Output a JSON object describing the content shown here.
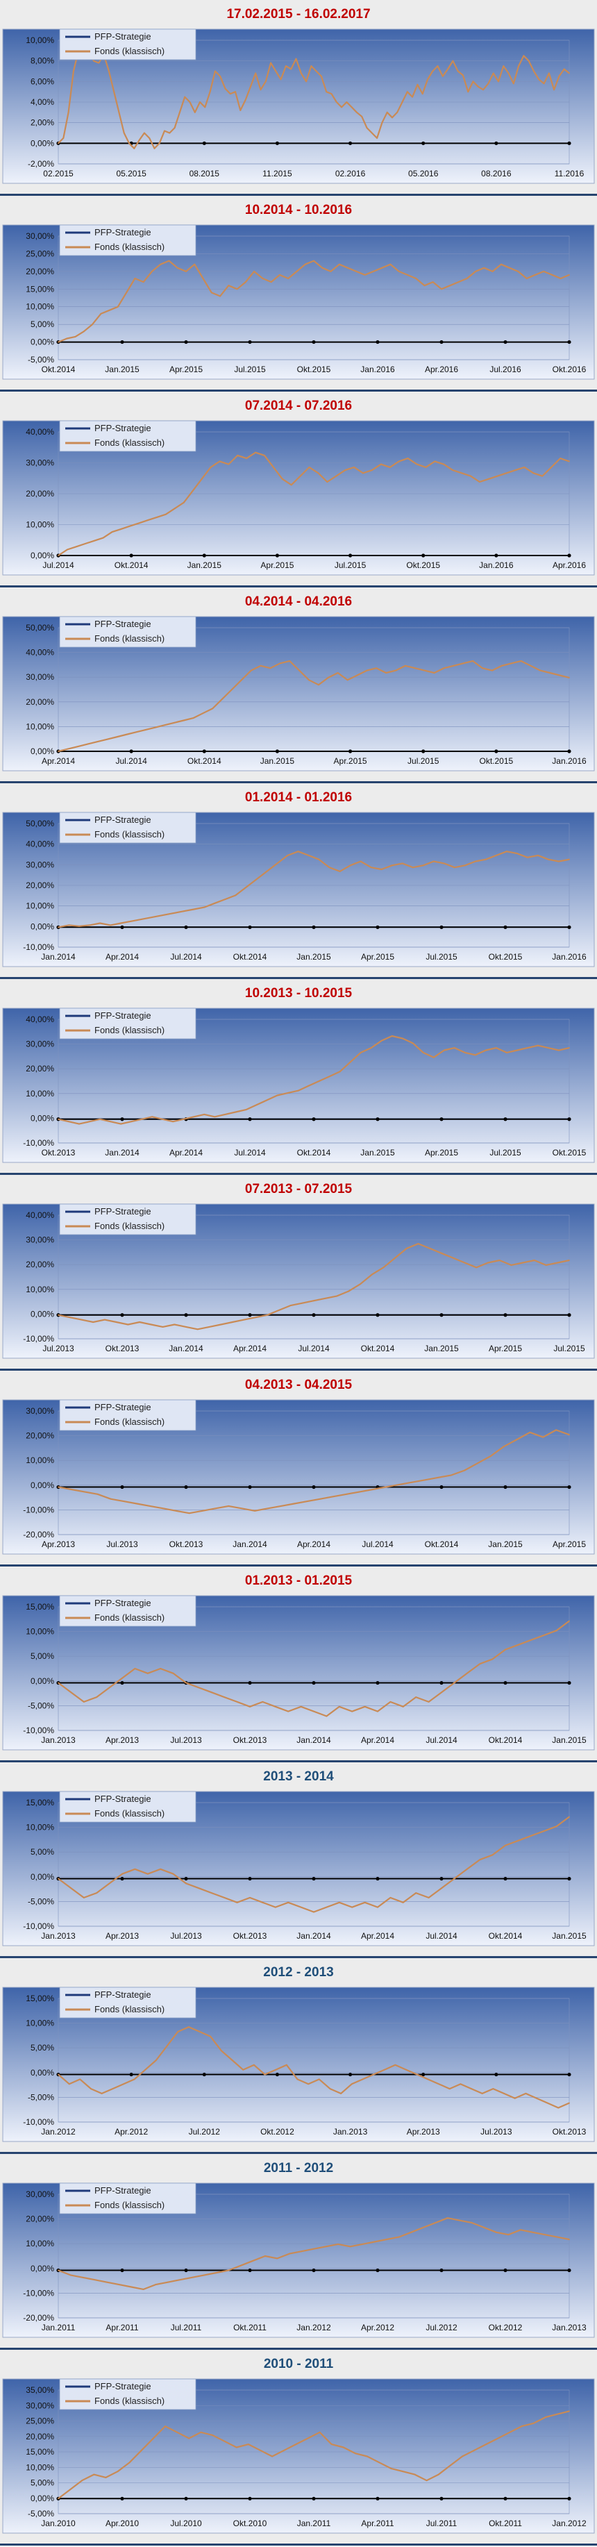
{
  "legend": {
    "strategy": "PFP-Strategie",
    "fund": "Fonds (klassisch)"
  },
  "colors": {
    "plot_top": "#3f64a9",
    "plot_bottom": "#eef2fb",
    "strategy": "#1f3a7a",
    "fund": "#c98a55",
    "title_red": "#c00000",
    "title_blue": "#1f4e79"
  },
  "chart_data": [
    {
      "type": "line",
      "title": "17.02.2015 - 16.02.2017",
      "title_color": "red",
      "yticks": [
        "10,00%",
        "8,00%",
        "6,00%",
        "4,00%",
        "2,00%",
        "0,00%",
        "-2,00%"
      ],
      "ylim": [
        -2,
        10
      ],
      "xticks": [
        "02.2015",
        "05.2015",
        "08.2015",
        "11.2015",
        "02.2016",
        "05.2016",
        "08.2016",
        "11.2016"
      ],
      "series": [
        {
          "name": "PFP-Strategie",
          "values": []
        },
        {
          "name": "Fonds (klassisch)",
          "values": [
            0,
            0.5,
            3,
            7,
            9,
            8.5,
            9,
            8,
            7.8,
            8.6,
            7,
            5,
            3,
            1,
            0,
            -0.5,
            0.3,
            1,
            0.5,
            -0.5,
            0,
            1.2,
            1,
            1.5,
            3,
            4.5,
            4,
            3,
            4,
            3.5,
            5,
            7,
            6.5,
            5.3,
            4.8,
            5,
            3.2,
            4.2,
            5.5,
            6.8,
            5.2,
            6,
            7.8,
            7,
            6.2,
            7.5,
            7.2,
            8.2,
            6.8,
            6,
            7.5,
            7,
            6.5,
            5,
            4.8,
            4,
            3.5,
            4,
            3.5,
            3,
            2.6,
            1.5,
            1,
            0.5,
            2,
            3,
            2.5,
            3,
            4,
            5,
            4.5,
            5.7,
            4.8,
            6.2,
            7,
            7.5,
            6.5,
            7.2,
            8,
            7,
            6.6,
            5,
            6,
            5.5,
            5.2,
            5.8,
            6.8,
            6,
            7.5,
            6.8,
            5.8,
            7.5,
            8.5,
            8,
            7,
            6.2,
            5.8,
            6.8,
            5.2,
            6.5,
            7.2,
            6.8
          ]
        }
      ]
    },
    {
      "type": "line",
      "title": "10.2014 - 10.2016",
      "title_color": "red",
      "yticks": [
        "30,00%",
        "25,00%",
        "20,00%",
        "15,00%",
        "10,00%",
        "5,00%",
        "0,00%",
        "-5,00%"
      ],
      "ylim": [
        -5,
        30
      ],
      "xticks": [
        "Okt.2014",
        "Jan.2015",
        "Apr.2015",
        "Jul.2015",
        "Okt.2015",
        "Jan.2016",
        "Apr.2016",
        "Jul.2016",
        "Okt.2016"
      ],
      "series": [
        {
          "name": "PFP-Strategie",
          "values": []
        },
        {
          "name": "Fonds (klassisch)",
          "values": [
            0,
            1,
            1.5,
            3,
            5,
            8,
            9,
            10,
            14,
            18,
            17,
            20,
            22,
            23,
            21,
            20,
            22,
            18,
            14,
            13,
            16,
            15,
            17,
            20,
            18,
            17,
            19,
            18,
            20,
            22,
            23,
            21,
            20,
            22,
            21,
            20,
            19,
            20,
            21,
            22,
            20,
            19,
            18,
            16,
            17,
            15,
            16,
            17,
            18,
            20,
            21,
            20,
            22,
            21,
            20,
            18,
            19,
            20,
            19,
            18,
            19
          ]
        }
      ]
    },
    {
      "type": "line",
      "title": "07.2014 - 07.2016",
      "title_color": "red",
      "yticks": [
        "40,00%",
        "30,00%",
        "20,00%",
        "10,00%",
        "0,00%"
      ],
      "ylim": [
        0,
        42
      ],
      "xticks": [
        "Jul.2014",
        "Okt.2014",
        "Jan.2015",
        "Apr.2015",
        "Jul.2015",
        "Okt.2015",
        "Jan.2016",
        "Apr.2016"
      ],
      "series": [
        {
          "name": "PFP-Strategie",
          "values": []
        },
        {
          "name": "Fonds (klassisch)",
          "values": [
            0,
            2,
            3,
            4,
            5,
            6,
            8,
            9,
            10,
            11,
            12,
            13,
            14,
            16,
            18,
            22,
            26,
            30,
            32,
            31,
            34,
            33,
            35,
            34,
            30,
            26,
            24,
            27,
            30,
            28,
            25,
            27,
            29,
            30,
            28,
            29,
            31,
            30,
            32,
            33,
            31,
            30,
            32,
            31,
            29,
            28,
            27,
            25,
            26,
            27,
            28,
            29,
            30,
            28,
            27,
            30,
            33,
            32
          ]
        }
      ]
    },
    {
      "type": "line",
      "title": "04.2014 - 04.2016",
      "title_color": "red",
      "yticks": [
        "50,00%",
        "40,00%",
        "30,00%",
        "20,00%",
        "10,00%",
        "0,00%"
      ],
      "ylim": [
        0,
        52
      ],
      "xticks": [
        "Apr.2014",
        "Jul.2014",
        "Okt.2014",
        "Jan.2015",
        "Apr.2015",
        "Jul.2015",
        "Okt.2015",
        "Jan.2016"
      ],
      "series": [
        {
          "name": "PFP-Strategie",
          "values": []
        },
        {
          "name": "Fonds (klassisch)",
          "values": [
            0,
            1,
            2,
            3,
            4,
            5,
            6,
            7,
            8,
            9,
            10,
            11,
            12,
            13,
            14,
            16,
            18,
            22,
            26,
            30,
            34,
            36,
            35,
            37,
            38,
            34,
            30,
            28,
            31,
            33,
            30,
            32,
            34,
            35,
            33,
            34,
            36,
            35,
            34,
            33,
            35,
            36,
            37,
            38,
            35,
            34,
            36,
            37,
            38,
            36,
            34,
            33,
            32,
            31
          ]
        }
      ]
    },
    {
      "type": "line",
      "title": "01.2014 - 01.2016",
      "title_color": "red",
      "yticks": [
        "50,00%",
        "40,00%",
        "30,00%",
        "20,00%",
        "10,00%",
        "0,00%",
        "-10,00%"
      ],
      "ylim": [
        -10,
        52
      ],
      "xticks": [
        "Jan.2014",
        "Apr.2014",
        "Jul.2014",
        "Okt.2014",
        "Jan.2015",
        "Apr.2015",
        "Jul.2015",
        "Okt.2015",
        "Jan.2016"
      ],
      "series": [
        {
          "name": "PFP-Strategie",
          "values": []
        },
        {
          "name": "Fonds (klassisch)",
          "values": [
            0,
            1,
            0.5,
            1,
            2,
            1,
            2,
            3,
            4,
            5,
            6,
            7,
            8,
            9,
            10,
            12,
            14,
            16,
            20,
            24,
            28,
            32,
            36,
            38,
            36,
            34,
            30,
            28,
            31,
            33,
            30,
            29,
            31,
            32,
            30,
            31,
            33,
            32,
            30,
            31,
            33,
            34,
            36,
            38,
            37,
            35,
            36,
            34,
            33,
            34
          ]
        }
      ]
    },
    {
      "type": "line",
      "title": "10.2013 - 10.2015",
      "title_color": "red",
      "yticks": [
        "40,00%",
        "30,00%",
        "20,00%",
        "10,00%",
        "0,00%",
        "-10,00%"
      ],
      "ylim": [
        -10,
        42
      ],
      "xticks": [
        "Okt.2013",
        "Jan.2014",
        "Apr.2014",
        "Jul.2014",
        "Okt.2014",
        "Jan.2015",
        "Apr.2015",
        "Jul.2015",
        "Okt.2015"
      ],
      "series": [
        {
          "name": "PFP-Strategie",
          "values": []
        },
        {
          "name": "Fonds (klassisch)",
          "values": [
            0,
            -1,
            -2,
            -1,
            0,
            -1,
            -2,
            -1,
            0,
            1,
            0,
            -1,
            0,
            1,
            2,
            1,
            2,
            3,
            4,
            6,
            8,
            10,
            11,
            12,
            14,
            16,
            18,
            20,
            24,
            28,
            30,
            33,
            35,
            34,
            32,
            28,
            26,
            29,
            30,
            28,
            27,
            29,
            30,
            28,
            29,
            30,
            31,
            30,
            29,
            30
          ]
        }
      ]
    },
    {
      "type": "line",
      "title": "07.2013 - 07.2015",
      "title_color": "red",
      "yticks": [
        "40,00%",
        "30,00%",
        "20,00%",
        "10,00%",
        "0,00%",
        "-10,00%"
      ],
      "ylim": [
        -10,
        42
      ],
      "xticks": [
        "Jul.2013",
        "Okt.2013",
        "Jan.2014",
        "Apr.2014",
        "Jul.2014",
        "Okt.2014",
        "Jan.2015",
        "Apr.2015",
        "Jul.2015"
      ],
      "series": [
        {
          "name": "PFP-Strategie",
          "values": []
        },
        {
          "name": "Fonds (klassisch)",
          "values": [
            0,
            -1,
            -2,
            -3,
            -2,
            -3,
            -4,
            -3,
            -4,
            -5,
            -4,
            -5,
            -6,
            -5,
            -4,
            -3,
            -2,
            -1,
            0,
            2,
            4,
            5,
            6,
            7,
            8,
            10,
            13,
            17,
            20,
            24,
            28,
            30,
            28,
            26,
            24,
            22,
            20,
            22,
            23,
            21,
            22,
            23,
            21,
            22,
            23
          ]
        }
      ]
    },
    {
      "type": "line",
      "title": "04.2013 - 04.2015",
      "title_color": "red",
      "yticks": [
        "30,00%",
        "20,00%",
        "10,00%",
        "0,00%",
        "-10,00%",
        "-20,00%"
      ],
      "ylim": [
        -20,
        32
      ],
      "xticks": [
        "Apr.2013",
        "Jul.2013",
        "Okt.2013",
        "Jan.2014",
        "Apr.2014",
        "Jul.2014",
        "Okt.2014",
        "Jan.2015",
        "Apr.2015"
      ],
      "series": [
        {
          "name": "PFP-Strategie",
          "values": []
        },
        {
          "name": "Fonds (klassisch)",
          "values": [
            0,
            -1,
            -2,
            -3,
            -5,
            -6,
            -7,
            -8,
            -9,
            -10,
            -11,
            -10,
            -9,
            -8,
            -9,
            -10,
            -9,
            -8,
            -7,
            -6,
            -5,
            -4,
            -3,
            -2,
            -1,
            0,
            1,
            2,
            3,
            4,
            5,
            7,
            10,
            13,
            17,
            20,
            23,
            21,
            24,
            22
          ]
        }
      ]
    },
    {
      "type": "line",
      "title": "01.2013 - 01.2015",
      "title_color": "red",
      "yticks": [
        "15,00%",
        "10,00%",
        "5,00%",
        "0,00%",
        "-5,00%",
        "-10,00%"
      ],
      "ylim": [
        -10,
        16
      ],
      "xticks": [
        "Jan.2013",
        "Apr.2013",
        "Jul.2013",
        "Okt.2013",
        "Jan.2014",
        "Apr.2014",
        "Jul.2014",
        "Okt.2014",
        "Jan.2015"
      ],
      "series": [
        {
          "name": "PFP-Strategie",
          "values": []
        },
        {
          "name": "Fonds (klassisch)",
          "values": [
            0,
            -2,
            -4,
            -3,
            -1,
            1,
            3,
            2,
            3,
            2,
            0,
            -1,
            -2,
            -3,
            -4,
            -5,
            -4,
            -5,
            -6,
            -5,
            -6,
            -7,
            -5,
            -6,
            -5,
            -6,
            -4,
            -5,
            -3,
            -4,
            -2,
            0,
            2,
            4,
            5,
            7,
            8,
            9,
            10,
            11,
            13
          ]
        }
      ]
    },
    {
      "type": "line",
      "title": "2013 - 2014",
      "title_color": "blue",
      "yticks": [
        "15,00%",
        "10,00%",
        "5,00%",
        "0,00%",
        "-5,00%",
        "-10,00%"
      ],
      "ylim": [
        -10,
        16
      ],
      "xticks": [
        "Jan.2013",
        "Apr.2013",
        "Jul.2013",
        "Okt.2013",
        "Jan.2014",
        "Apr.2014",
        "Jul.2014",
        "Okt.2014",
        "Jan.2015"
      ],
      "series": [
        {
          "name": "PFP-Strategie",
          "values": []
        },
        {
          "name": "Fonds (klassisch)",
          "values": [
            0,
            -2,
            -4,
            -3,
            -1,
            1,
            2,
            1,
            2,
            1,
            -1,
            -2,
            -3,
            -4,
            -5,
            -4,
            -5,
            -6,
            -5,
            -6,
            -7,
            -6,
            -5,
            -6,
            -5,
            -6,
            -4,
            -5,
            -3,
            -4,
            -2,
            0,
            2,
            4,
            5,
            7,
            8,
            9,
            10,
            11,
            13
          ]
        }
      ]
    },
    {
      "type": "line",
      "title": "2012 - 2013",
      "title_color": "blue",
      "yticks": [
        "15,00%",
        "10,00%",
        "5,00%",
        "0,00%",
        "-5,00%",
        "-10,00%"
      ],
      "ylim": [
        -10,
        16
      ],
      "xticks": [
        "Jan.2012",
        "Apr.2012",
        "Jul.2012",
        "Okt.2012",
        "Jan.2013",
        "Apr.2013",
        "Jul.2013",
        "Okt.2013"
      ],
      "series": [
        {
          "name": "PFP-Strategie",
          "values": []
        },
        {
          "name": "Fonds (klassisch)",
          "values": [
            0,
            -2,
            -1,
            -3,
            -4,
            -3,
            -2,
            -1,
            1,
            3,
            6,
            9,
            10,
            9,
            8,
            5,
            3,
            1,
            2,
            0,
            1,
            2,
            -1,
            -2,
            -1,
            -3,
            -4,
            -2,
            -1,
            0,
            1,
            2,
            1,
            0,
            -1,
            -2,
            -3,
            -2,
            -3,
            -4,
            -3,
            -4,
            -5,
            -4,
            -5,
            -6,
            -7,
            -6
          ]
        }
      ]
    },
    {
      "type": "line",
      "title": "2011 - 2012",
      "title_color": "blue",
      "yticks": [
        "30,00%",
        "20,00%",
        "10,00%",
        "0,00%",
        "-10,00%",
        "-20,00%"
      ],
      "ylim": [
        -20,
        32
      ],
      "xticks": [
        "Jan.2011",
        "Apr.2011",
        "Jul.2011",
        "Okt.2011",
        "Jan.2012",
        "Apr.2012",
        "Jul.2012",
        "Okt.2012",
        "Jan.2013"
      ],
      "series": [
        {
          "name": "PFP-Strategie",
          "values": []
        },
        {
          "name": "Fonds (klassisch)",
          "values": [
            0,
            -2,
            -3,
            -4,
            -5,
            -6,
            -7,
            -8,
            -6,
            -5,
            -4,
            -3,
            -2,
            -1,
            0,
            2,
            4,
            6,
            5,
            7,
            8,
            9,
            10,
            11,
            10,
            11,
            12,
            13,
            14,
            16,
            18,
            20,
            22,
            21,
            20,
            18,
            16,
            15,
            17,
            16,
            15,
            14,
            13
          ]
        }
      ]
    },
    {
      "type": "line",
      "title": "2010 - 2011",
      "title_color": "blue",
      "yticks": [
        "35,00%",
        "30,00%",
        "25,00%",
        "20,00%",
        "15,00%",
        "10,00%",
        "5,00%",
        "0,00%",
        "-5,00%"
      ],
      "ylim": [
        -5,
        36
      ],
      "xticks": [
        "Jan.2010",
        "Apr.2010",
        "Jul.2010",
        "Okt.2010",
        "Jan.2011",
        "Apr.2011",
        "Jul.2011",
        "Okt.2011",
        "Jan.2012"
      ],
      "series": [
        {
          "name": "PFP-Strategie",
          "values": []
        },
        {
          "name": "Fonds (klassisch)",
          "values": [
            0,
            3,
            6,
            8,
            7,
            9,
            12,
            16,
            20,
            24,
            22,
            20,
            22,
            21,
            19,
            17,
            18,
            16,
            14,
            16,
            18,
            20,
            22,
            18,
            17,
            15,
            14,
            12,
            10,
            9,
            8,
            6,
            8,
            11,
            14,
            16,
            18,
            20,
            22,
            24,
            25,
            27,
            28,
            29
          ]
        }
      ]
    }
  ]
}
